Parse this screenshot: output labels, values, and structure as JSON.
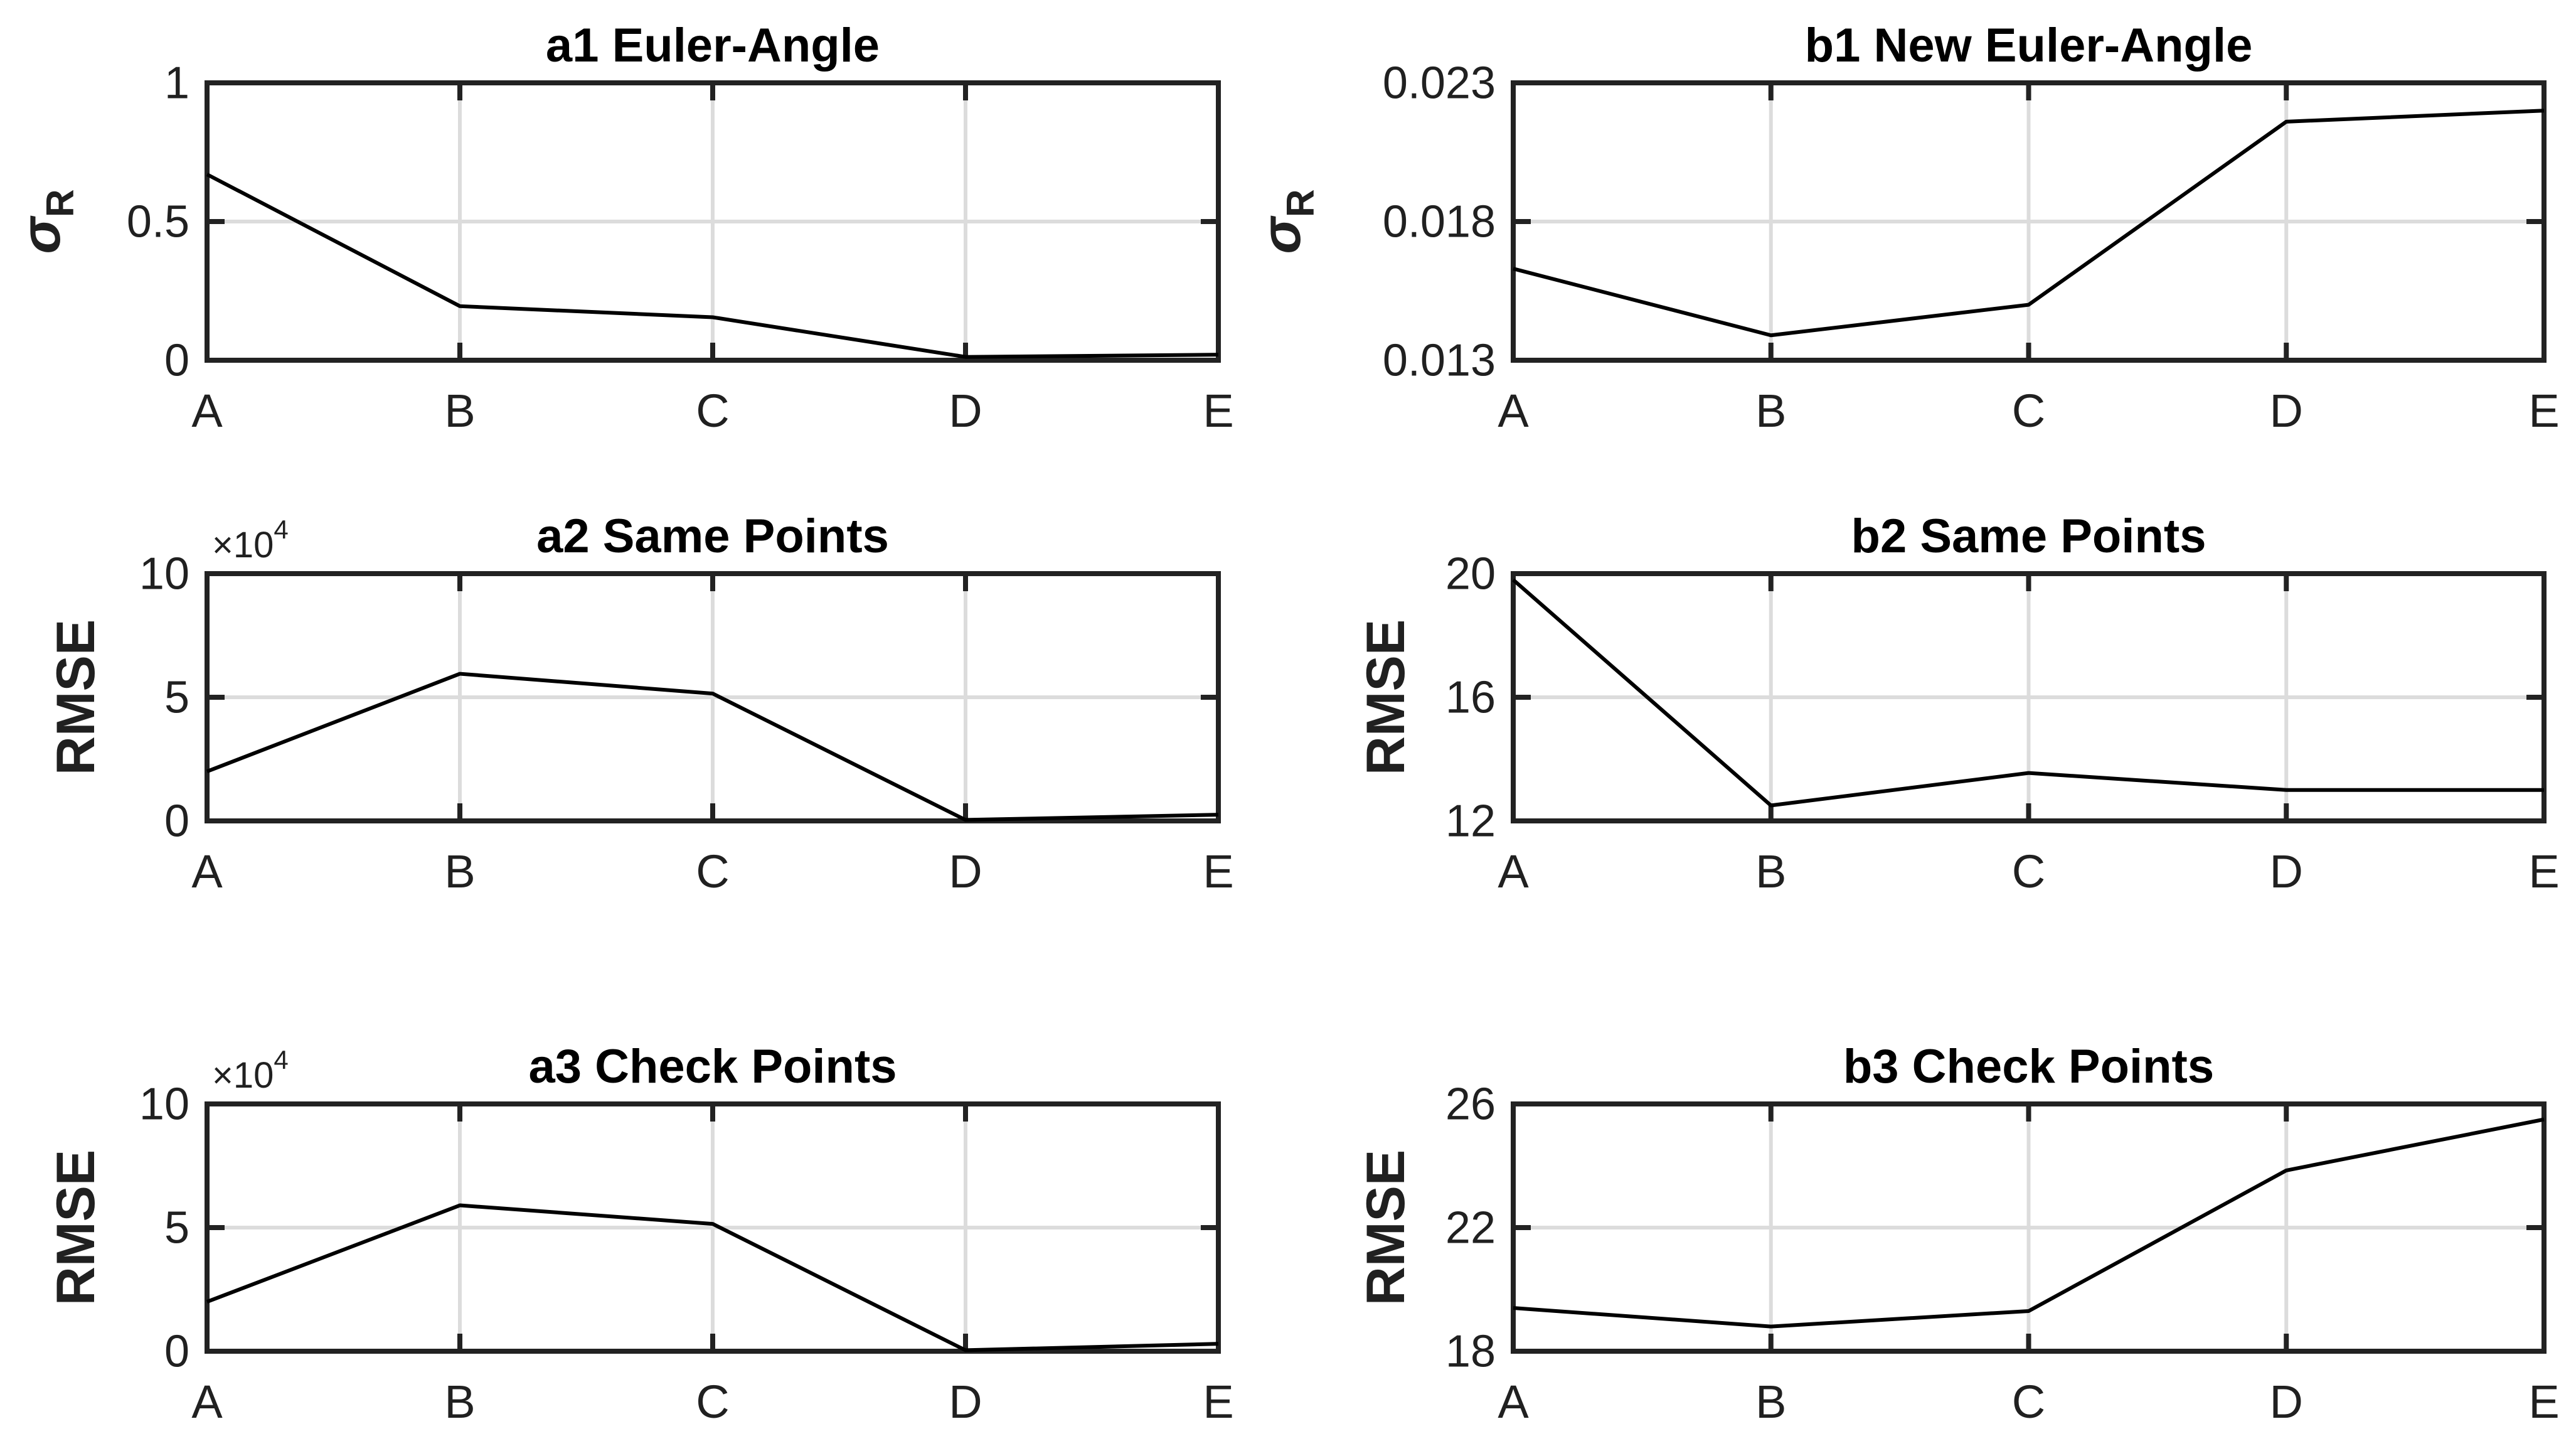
{
  "figure": {
    "background": "#ffffff",
    "rows": 3,
    "cols": 2
  },
  "colors": {
    "axis": "#222222",
    "grid": "#dcdcdc",
    "line": "#000000",
    "title": "#000000",
    "tick_text": "#202020",
    "background": "#ffffff"
  },
  "chart_data": [
    {
      "id": "a1",
      "type": "line",
      "title": "a1 Euler-Angle",
      "ylabel": {
        "text": "σ",
        "sub": "R"
      },
      "xlabel": "",
      "categories": [
        "A",
        "B",
        "C",
        "D",
        "E"
      ],
      "values": [
        0.67,
        0.195,
        0.155,
        0.012,
        0.02
      ],
      "ylim": [
        0,
        1
      ],
      "yticks": [
        {
          "value": 0,
          "label": "0"
        },
        {
          "value": 0.5,
          "label": "0.5"
        },
        {
          "value": 1,
          "label": "1"
        }
      ],
      "multiplier": null,
      "grid": "on",
      "legend": null,
      "position": {
        "row": 0,
        "col": 0
      }
    },
    {
      "id": "b1",
      "type": "line",
      "title": "b1 New Euler-Angle",
      "ylabel": {
        "text": "σ",
        "sub": "R"
      },
      "xlabel": "",
      "categories": [
        "A",
        "B",
        "C",
        "D",
        "E"
      ],
      "values": [
        0.0163,
        0.0139,
        0.015,
        0.0216,
        0.022
      ],
      "ylim": [
        0.013,
        0.023
      ],
      "yticks": [
        {
          "value": 0.013,
          "label": "0.013"
        },
        {
          "value": 0.018,
          "label": "0.018"
        },
        {
          "value": 0.023,
          "label": "0.023"
        }
      ],
      "multiplier": null,
      "grid": "on",
      "legend": null,
      "position": {
        "row": 0,
        "col": 1
      }
    },
    {
      "id": "a2",
      "type": "line",
      "title": "a2 Same Points",
      "ylabel": {
        "text": "RMSE",
        "sub": ""
      },
      "xlabel": "",
      "categories": [
        "A",
        "B",
        "C",
        "D",
        "E"
      ],
      "values": [
        2.0,
        5.95,
        5.15,
        0.04,
        0.25
      ],
      "ylim": [
        0,
        10
      ],
      "yticks": [
        {
          "value": 0,
          "label": "0"
        },
        {
          "value": 5,
          "label": "5"
        },
        {
          "value": 10,
          "label": "10"
        }
      ],
      "multiplier": {
        "base": "×10",
        "exp": "4"
      },
      "grid": "on",
      "legend": null,
      "position": {
        "row": 1,
        "col": 0
      }
    },
    {
      "id": "b2",
      "type": "line",
      "title": "b2 Same Points",
      "ylabel": {
        "text": "RMSE",
        "sub": ""
      },
      "xlabel": "",
      "categories": [
        "A",
        "B",
        "C",
        "D",
        "E"
      ],
      "values": [
        19.8,
        12.5,
        13.55,
        13.0,
        13.0
      ],
      "ylim": [
        12,
        20
      ],
      "yticks": [
        {
          "value": 12,
          "label": "12"
        },
        {
          "value": 16,
          "label": "16"
        },
        {
          "value": 20,
          "label": "20"
        }
      ],
      "multiplier": null,
      "grid": "on",
      "legend": null,
      "position": {
        "row": 1,
        "col": 1
      }
    },
    {
      "id": "a3",
      "type": "line",
      "title": "a3 Check Points",
      "ylabel": {
        "text": "RMSE",
        "sub": ""
      },
      "xlabel": "",
      "categories": [
        "A",
        "B",
        "C",
        "D",
        "E"
      ],
      "values": [
        2.0,
        5.9,
        5.15,
        0.04,
        0.3
      ],
      "ylim": [
        0,
        10
      ],
      "yticks": [
        {
          "value": 0,
          "label": "0"
        },
        {
          "value": 5,
          "label": "5"
        },
        {
          "value": 10,
          "label": "10"
        }
      ],
      "multiplier": {
        "base": "×10",
        "exp": "4"
      },
      "grid": "on",
      "legend": null,
      "position": {
        "row": 2,
        "col": 0
      }
    },
    {
      "id": "b3",
      "type": "line",
      "title": "b3 Check Points",
      "ylabel": {
        "text": "RMSE",
        "sub": ""
      },
      "xlabel": "",
      "categories": [
        "A",
        "B",
        "C",
        "D",
        "E"
      ],
      "values": [
        19.4,
        18.8,
        19.3,
        23.85,
        25.5
      ],
      "ylim": [
        18,
        26
      ],
      "yticks": [
        {
          "value": 18,
          "label": "18"
        },
        {
          "value": 22,
          "label": "22"
        },
        {
          "value": 26,
          "label": "26"
        }
      ],
      "multiplier": null,
      "grid": "on",
      "legend": null,
      "position": {
        "row": 2,
        "col": 1
      }
    }
  ]
}
